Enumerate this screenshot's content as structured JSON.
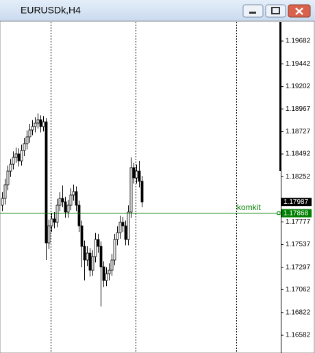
{
  "chart_data": {
    "type": "candlestick",
    "title": "EURUSDk,H4",
    "open": [
      1.17952,
      1.18024,
      1.18168,
      1.18312,
      1.18384,
      1.18456,
      1.18493,
      1.1842,
      1.18529,
      1.18601,
      1.18673,
      1.18745,
      1.18781,
      1.18817,
      1.18853,
      1.18781,
      1.18831,
      1.17555,
      1.17735,
      1.17808,
      1.17772,
      1.17952,
      1.18024,
      1.17988,
      1.1788,
      1.17952,
      1.1806,
      1.18096,
      1.17952,
      1.17735,
      1.17519,
      1.17375,
      1.17447,
      1.17267,
      1.17411,
      1.17591,
      1.17519,
      1.17303,
      1.17159,
      1.17231,
      1.17267,
      1.17375,
      1.17591,
      1.17663,
      1.17772,
      1.17735,
      1.17591,
      1.1788,
      1.18348,
      1.1824,
      1.18312,
      1.18204
    ],
    "high": [
      1.1809,
      1.1823,
      1.1837,
      1.1844,
      1.1852,
      1.1856,
      1.1855,
      1.1859,
      1.1866,
      1.1874,
      1.1881,
      1.1885,
      1.1888,
      1.1892,
      1.189,
      1.1889,
      1.1887,
      1.178,
      1.1787,
      1.1788,
      1.1802,
      1.1809,
      1.1816,
      1.1804,
      1.1801,
      1.1813,
      1.1817,
      1.1815,
      1.18,
      1.1779,
      1.1758,
      1.1752,
      1.175,
      1.1748,
      1.1766,
      1.1765,
      1.1757,
      1.1736,
      1.173,
      1.1734,
      1.1744,
      1.1765,
      1.1773,
      1.1784,
      1.1783,
      1.1779,
      1.1795,
      1.18456,
      1.184,
      1.1838,
      1.1842,
      1.1826
    ],
    "low": [
      1.1789,
      1.1796,
      1.1811,
      1.1825,
      1.1833,
      1.184,
      1.1836,
      1.1837,
      1.1847,
      1.1854,
      1.1861,
      1.1869,
      1.1872,
      1.1876,
      1.1872,
      1.1873,
      1.17375,
      1.1749,
      1.1767,
      1.1771,
      1.1772,
      1.1789,
      1.1793,
      1.1782,
      1.1782,
      1.179,
      1.18,
      1.1789,
      1.1767,
      1.173,
      1.1716,
      1.1731,
      1.172,
      1.1721,
      1.1735,
      1.1745,
      1.16885,
      1.1709,
      1.171,
      1.1716,
      1.1721,
      1.1732,
      1.1753,
      1.176,
      1.1767,
      1.1753,
      1.1753,
      1.1782,
      1.1818,
      1.1818,
      1.1814,
      1.1793
    ],
    "close": [
      1.18024,
      1.18168,
      1.18312,
      1.18384,
      1.18456,
      1.18493,
      1.1842,
      1.18529,
      1.18601,
      1.18673,
      1.18745,
      1.18781,
      1.18817,
      1.18853,
      1.18781,
      1.18831,
      1.17555,
      1.17735,
      1.17808,
      1.17772,
      1.17952,
      1.18024,
      1.17988,
      1.1788,
      1.17952,
      1.1806,
      1.18096,
      1.17952,
      1.17735,
      1.17519,
      1.17375,
      1.17447,
      1.17267,
      1.17411,
      1.17591,
      1.17519,
      1.17303,
      1.17159,
      1.17231,
      1.17267,
      1.17375,
      1.17591,
      1.17663,
      1.17772,
      1.17735,
      1.17591,
      1.1788,
      1.18348,
      1.1824,
      1.18312,
      1.18204,
      1.17987
    ],
    "up_color": "#ffffff",
    "down_color": "#000000",
    "ylim": [
      1.16395,
      1.19884
    ],
    "yticks": [
      1.19682,
      1.19442,
      1.19202,
      1.18967,
      1.18727,
      1.18492,
      1.18252,
      1.17777,
      1.17537,
      1.17297,
      1.17062,
      1.16822,
      1.16582
    ],
    "bid": 1.17987,
    "hline": {
      "label": "komkit",
      "value": 1.17868,
      "color": "#008000"
    }
  }
}
